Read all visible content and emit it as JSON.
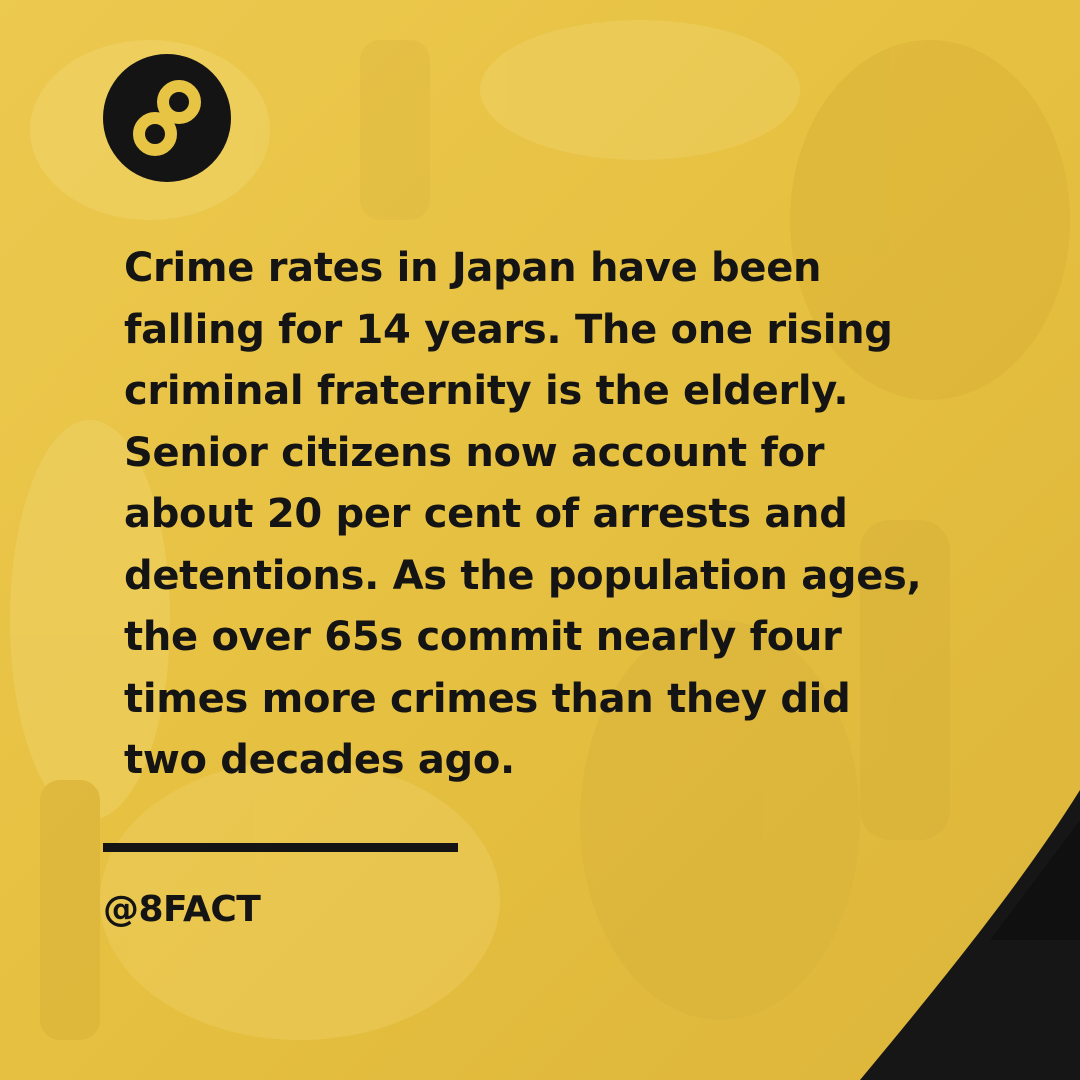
{
  "card": {
    "colors": {
      "background": "#e8c444",
      "accent": "#141414",
      "photo_tint_light": "#f0d266",
      "photo_tint_dark": "#c9a832"
    },
    "logo": {
      "icon": "infinity-eight-icon"
    },
    "fact_lines": [
      "Crime rates in Japan have been",
      "falling for 14 years. The one rising",
      "criminal fraternity is the elderly.",
      "Senior citizens now account for",
      "about 20 per cent of arrests and",
      "detentions. As the population ages,",
      "the over 65s commit nearly four",
      "times more crimes than they did",
      "two decades ago."
    ],
    "handle": "@8FACT"
  }
}
